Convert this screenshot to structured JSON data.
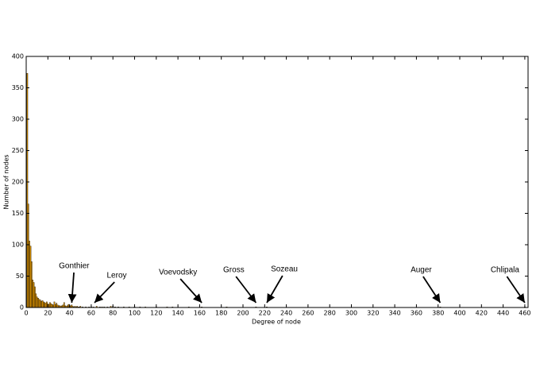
{
  "chart_data": {
    "type": "bar",
    "x_label": "Degree of node",
    "y_label": "Number of nodes",
    "x": [
      1,
      2,
      3,
      4,
      5,
      6,
      7,
      8,
      9,
      10,
      11,
      12,
      13,
      14,
      15,
      16,
      17,
      18,
      19,
      20,
      21,
      22,
      23,
      24,
      25,
      26,
      27,
      28,
      29,
      30,
      31,
      32,
      33,
      34,
      35,
      36,
      37,
      38,
      39,
      40,
      41,
      42,
      43,
      44,
      45,
      46,
      47,
      48,
      49,
      50,
      52,
      55,
      58,
      60,
      62,
      65,
      68,
      70,
      72,
      75,
      78,
      80,
      82,
      85,
      90,
      95,
      100,
      105,
      110,
      120,
      130,
      135,
      150,
      162,
      185,
      212,
      222,
      382,
      460
    ],
    "values": [
      373,
      165,
      106,
      98,
      73,
      44,
      40,
      33,
      22,
      17,
      15,
      13,
      12,
      10,
      11,
      9,
      8,
      7,
      9,
      6,
      5,
      8,
      6,
      5,
      4,
      9,
      5,
      7,
      4,
      3,
      3,
      2,
      3,
      4,
      8,
      3,
      2,
      3,
      5,
      2,
      3,
      4,
      2,
      1,
      2,
      1,
      2,
      1,
      1,
      2,
      1,
      1,
      1,
      1,
      1,
      2,
      1,
      1,
      1,
      1,
      2,
      2,
      1,
      1,
      1,
      1,
      1,
      1,
      1,
      1,
      1,
      1,
      1,
      1,
      1,
      1,
      1,
      1,
      1
    ],
    "color": "#cc8800",
    "xlim": [
      0,
      463
    ],
    "ylim": [
      0,
      400
    ],
    "xticks": [
      0,
      20,
      40,
      60,
      80,
      100,
      120,
      140,
      160,
      180,
      200,
      220,
      240,
      260,
      280,
      300,
      320,
      340,
      360,
      380,
      400,
      420,
      440,
      460
    ],
    "yticks": [
      0,
      50,
      100,
      150,
      200,
      250,
      300,
      350,
      400
    ],
    "annotations": [
      {
        "text": "Gonthier",
        "x": 42
      },
      {
        "text": "Leroy",
        "x": 63
      },
      {
        "text": "Voevodsky",
        "x": 162
      },
      {
        "text": "Gross",
        "x": 212
      },
      {
        "text": "Sozeau",
        "x": 222
      },
      {
        "text": "Auger",
        "x": 382
      },
      {
        "text": "Chlipala",
        "x": 460
      }
    ]
  }
}
